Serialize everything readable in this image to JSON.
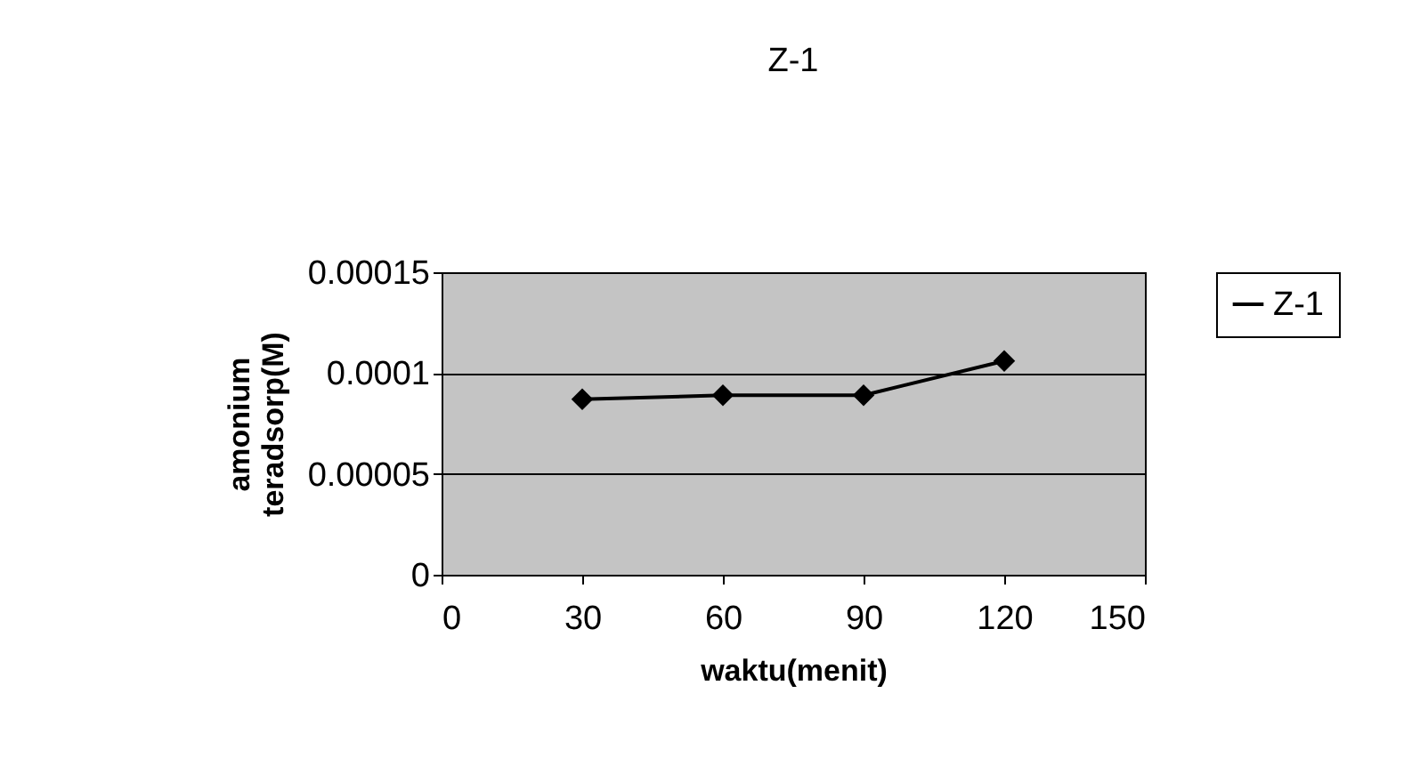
{
  "chart_data": {
    "type": "line",
    "title": "Z-1",
    "xlabel": "waktu(menit)",
    "ylabel": "amonium teradsorp(M)",
    "x": [
      30,
      60,
      90,
      120
    ],
    "series": [
      {
        "name": "Z-1",
        "color": "#000000",
        "values": [
          8.7e-05,
          8.9e-05,
          8.9e-05,
          0.000106
        ]
      }
    ],
    "xlim": [
      0,
      150
    ],
    "xticks": [
      0,
      30,
      60,
      90,
      120,
      150
    ],
    "ylim": [
      0,
      0.00015
    ],
    "yticks": [
      0,
      {
        "value": 5e-05,
        "label": "0.00005"
      },
      0.0001,
      0.00015
    ],
    "grid": "y",
    "legend": "right",
    "marker": "diamond",
    "line_style": "solid"
  }
}
